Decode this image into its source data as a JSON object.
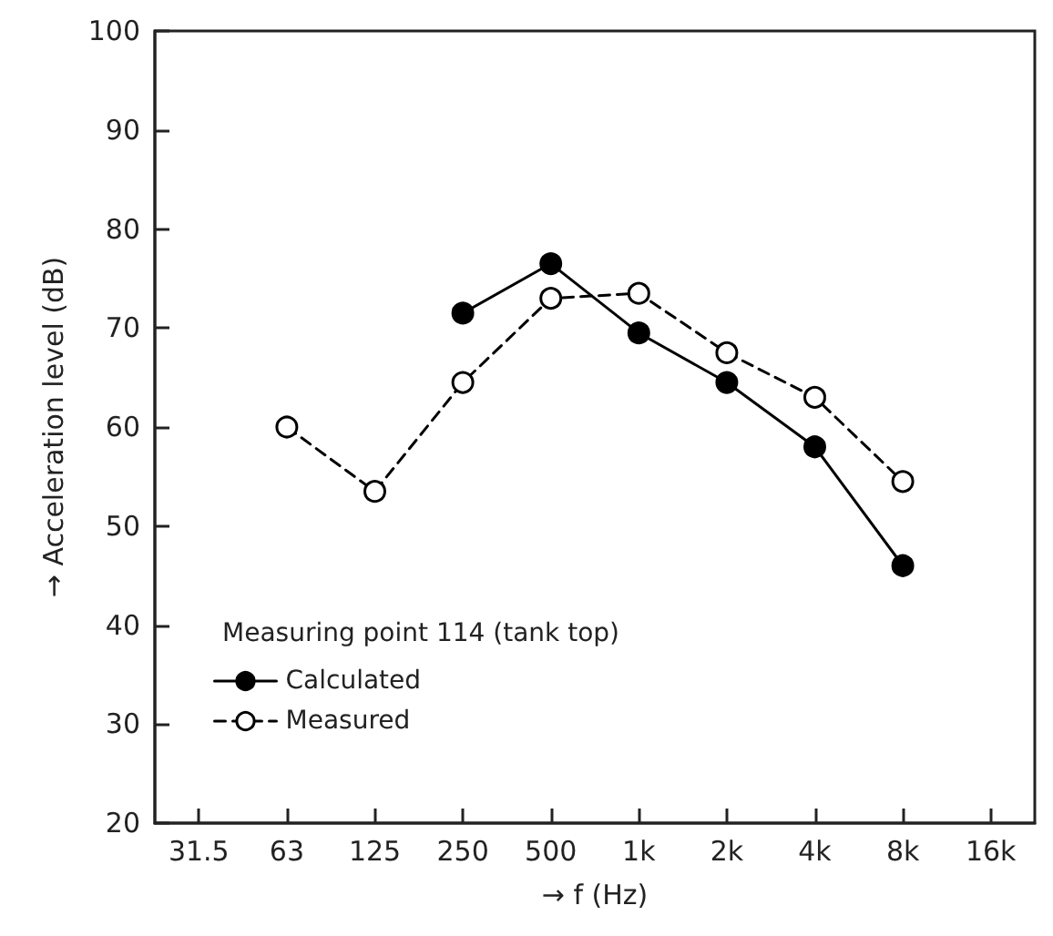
{
  "chart_data": {
    "type": "line",
    "xlabel": "→ f (Hz)",
    "ylabel": "→ Acceleration level (dB)",
    "legend_title": "Measuring point 114 (tank top)",
    "categories": [
      "31.5",
      "63",
      "125",
      "250",
      "500",
      "1k",
      "2k",
      "4k",
      "8k",
      "16k"
    ],
    "series": [
      {
        "name": "Calculated",
        "color": "#000000",
        "line_style": "solid",
        "values": [
          null,
          null,
          null,
          71.5,
          76.5,
          69.5,
          64.5,
          58,
          46,
          null
        ]
      },
      {
        "name": "Measured",
        "color": "#000000",
        "line_style": "dashed",
        "values": [
          null,
          60,
          53.5,
          64.5,
          73,
          73.5,
          67.5,
          63,
          54.5,
          null
        ]
      }
    ],
    "ylim": [
      20,
      100
    ],
    "yticks": [
      20,
      30,
      40,
      50,
      60,
      70,
      80,
      90,
      100
    ],
    "marker": "circle",
    "grid": false,
    "legend": "bottom left"
  }
}
